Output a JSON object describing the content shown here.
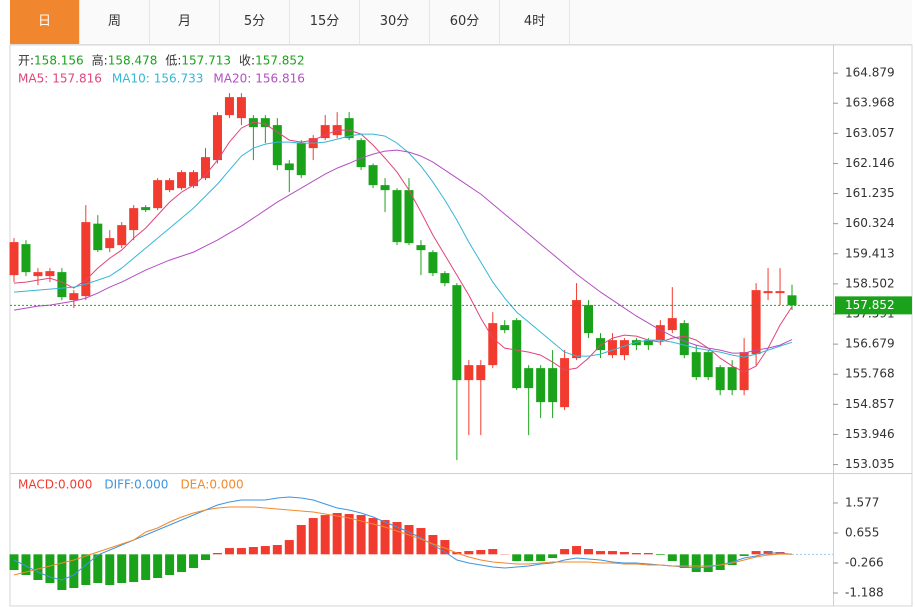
{
  "tabs": [
    "日",
    "周",
    "月",
    "5分",
    "15分",
    "30分",
    "60分",
    "4时"
  ],
  "active_tab": 0,
  "chart_data": [
    {
      "type": "candlestick",
      "legend_labels": {
        "open": "开:",
        "high": "高:",
        "low": "低:",
        "close": "收:"
      },
      "up_color": "#f23b2f",
      "down_color": "#1aa31a",
      "open": [
        158.767,
        159.705,
        158.737,
        158.737,
        158.858,
        158.011,
        158.132,
        160.324,
        159.584,
        159.675,
        160.129,
        160.825,
        160.794,
        161.339,
        161.399,
        161.46,
        161.702,
        162.247,
        163.608,
        163.517,
        163.517,
        163.517,
        163.306,
        162.146,
        162.761,
        162.61,
        162.912,
        163.003,
        163.517,
        162.852,
        162.095,
        161.49,
        161.339,
        161.339,
        159.675,
        159.463,
        158.828,
        158.464,
        155.59,
        155.59,
        156.044,
        157.254,
        157.405,
        155.953,
        155.953,
        155.953,
        154.773,
        156.256,
        157.86,
        156.861,
        156.346,
        156.346,
        156.8,
        156.8,
        156.8,
        157.103,
        157.315,
        156.437,
        156.437,
        155.983,
        155.983,
        155.287,
        156.377,
        158.222,
        158.222,
        158.156
      ],
      "high": [
        159.887,
        159.826,
        158.979,
        158.979,
        158.979,
        158.313,
        160.885,
        160.582,
        160.129,
        160.371,
        160.885,
        160.885,
        161.702,
        161.702,
        161.944,
        161.944,
        162.61,
        163.699,
        164.274,
        164.274,
        163.608,
        163.608,
        163.517,
        162.247,
        162.852,
        163.003,
        163.608,
        163.699,
        163.699,
        162.912,
        162.146,
        161.702,
        161.399,
        161.702,
        159.826,
        159.523,
        158.888,
        158.525,
        156.195,
        156.195,
        157.648,
        157.405,
        157.466,
        156.044,
        156.044,
        156.498,
        156.498,
        158.525,
        158.011,
        157.012,
        157.012,
        156.861,
        156.861,
        156.861,
        157.405,
        158.404,
        157.405,
        156.649,
        156.498,
        156.044,
        156.195,
        156.861,
        158.525,
        158.979,
        158.979,
        158.478
      ],
      "low": [
        158.555,
        158.737,
        158.464,
        158.555,
        158.011,
        157.769,
        158.011,
        159.463,
        159.463,
        159.584,
        159.826,
        160.673,
        160.734,
        161.278,
        161.339,
        161.399,
        161.641,
        162.146,
        163.517,
        163.306,
        162.247,
        162.761,
        161.944,
        161.278,
        161.702,
        162.247,
        162.852,
        162.912,
        162.852,
        161.944,
        161.399,
        160.673,
        159.675,
        159.675,
        158.767,
        158.737,
        158.434,
        153.169,
        153.926,
        153.926,
        155.953,
        157.012,
        155.287,
        153.926,
        154.44,
        154.44,
        154.682,
        156.195,
        156.861,
        156.256,
        156.256,
        156.195,
        156.498,
        156.498,
        156.649,
        157.012,
        156.256,
        155.59,
        155.59,
        155.136,
        155.136,
        155.136,
        156.044,
        158.011,
        157.86,
        157.713
      ],
      "close": [
        159.766,
        158.858,
        158.858,
        158.888,
        158.101,
        158.222,
        160.371,
        159.523,
        159.887,
        160.28,
        160.794,
        160.734,
        161.641,
        161.641,
        161.884,
        161.884,
        162.337,
        163.608,
        164.153,
        164.153,
        163.245,
        163.245,
        162.095,
        161.944,
        161.793,
        162.912,
        163.306,
        163.306,
        162.912,
        162.035,
        161.49,
        161.339,
        159.766,
        159.735,
        159.523,
        158.828,
        158.525,
        155.59,
        156.044,
        156.044,
        157.315,
        157.103,
        155.348,
        155.348,
        154.924,
        154.924,
        156.256,
        158.011,
        157.012,
        156.498,
        156.8,
        156.8,
        156.649,
        156.649,
        157.254,
        157.466,
        156.346,
        155.681,
        155.681,
        155.287,
        155.287,
        156.437,
        158.313,
        158.283,
        158.283,
        157.852
      ],
      "overlays": [
        {
          "name": "MA5:",
          "color": "#e0457b",
          "values": [
            158.525,
            158.555,
            158.616,
            158.676,
            158.555,
            158.374,
            158.616,
            158.979,
            159.281,
            159.523,
            159.887,
            160.189,
            160.583,
            160.976,
            161.278,
            161.49,
            161.793,
            162.247,
            162.791,
            163.215,
            163.396,
            163.336,
            163.094,
            162.852,
            162.791,
            162.852,
            163.003,
            163.154,
            163.154,
            163.033,
            162.7,
            162.307,
            161.884,
            161.339,
            160.673,
            159.977,
            159.372,
            158.767,
            158.162,
            157.466,
            156.861,
            156.558,
            156.498,
            156.437,
            156.346,
            156.135,
            155.893,
            155.953,
            156.256,
            156.649,
            156.861,
            156.952,
            156.922,
            156.8,
            156.74,
            156.861,
            156.922,
            156.8,
            156.558,
            156.256,
            156.014,
            155.832,
            156.014,
            156.558,
            157.254,
            157.816
          ]
        },
        {
          "name": "MA10:",
          "color": "#37b6d6",
          "values": [
            158.253,
            158.283,
            158.313,
            158.343,
            158.374,
            158.404,
            158.495,
            158.616,
            158.737,
            158.979,
            159.281,
            159.584,
            159.887,
            160.189,
            160.492,
            160.794,
            161.157,
            161.52,
            161.944,
            162.368,
            162.61,
            162.731,
            162.791,
            162.791,
            162.761,
            162.761,
            162.791,
            162.882,
            162.973,
            163.033,
            163.033,
            162.973,
            162.761,
            162.458,
            162.065,
            161.581,
            161.036,
            160.431,
            159.766,
            159.16,
            158.555,
            158.071,
            157.648,
            157.345,
            157.042,
            156.74,
            156.437,
            156.316,
            156.316,
            156.377,
            156.498,
            156.619,
            156.74,
            156.8,
            156.8,
            156.74,
            156.649,
            156.558,
            156.498,
            156.437,
            156.346,
            156.286,
            156.377,
            156.498,
            156.619,
            156.733
          ]
        },
        {
          "name": "MA20:",
          "color": "#b44fc3",
          "values": [
            157.708,
            157.769,
            157.829,
            157.86,
            157.92,
            157.98,
            158.071,
            158.222,
            158.404,
            158.555,
            158.737,
            158.918,
            159.069,
            159.221,
            159.342,
            159.463,
            159.645,
            159.826,
            160.038,
            160.25,
            160.492,
            160.734,
            160.976,
            161.188,
            161.399,
            161.611,
            161.823,
            162.005,
            162.146,
            162.307,
            162.428,
            162.519,
            162.549,
            162.489,
            162.368,
            162.186,
            161.944,
            161.702,
            161.46,
            161.218,
            160.915,
            160.613,
            160.31,
            160.008,
            159.705,
            159.402,
            159.1,
            158.797,
            158.525,
            158.253,
            158.011,
            157.769,
            157.527,
            157.315,
            157.103,
            156.921,
            156.77,
            156.649,
            156.558,
            156.498,
            156.407,
            156.407,
            156.498,
            156.558,
            156.649,
            156.816
          ]
        }
      ],
      "ylim": [
        152.81,
        165.73
      ],
      "yticks": [
        153.035,
        153.946,
        154.857,
        155.768,
        156.679,
        157.591,
        158.502,
        159.413,
        160.324,
        161.235,
        162.146,
        163.057,
        163.968,
        164.879
      ]
    },
    {
      "type": "macd",
      "histogram": {
        "name": "MACD:",
        "up_color": "#f23b2f",
        "down_color": "#1aa31a",
        "values": [
          -0.482,
          -0.636,
          -0.789,
          -0.881,
          -1.096,
          -1.035,
          -0.943,
          -0.881,
          -0.943,
          -0.881,
          -0.851,
          -0.789,
          -0.728,
          -0.636,
          -0.544,
          -0.421,
          -0.175,
          0.04,
          0.193,
          0.193,
          0.224,
          0.255,
          0.286,
          0.439,
          0.9,
          1.115,
          1.207,
          1.269,
          1.238,
          1.207,
          1.115,
          1.053,
          0.992,
          0.9,
          0.808,
          0.593,
          0.439,
          0.071,
          0.101,
          0.132,
          0.163,
          0.009,
          -0.206,
          -0.206,
          -0.206,
          -0.114,
          0.163,
          0.255,
          0.163,
          0.101,
          0.101,
          0.071,
          0.04,
          0.04,
          -0.021,
          -0.206,
          -0.421,
          -0.544,
          -0.544,
          -0.482,
          -0.329,
          -0.052,
          0.101,
          0.101,
          0.071,
          0
        ],
        "value_labels": [
          null,
          null,
          null,
          null,
          null,
          null,
          null,
          null,
          null,
          null,
          null,
          null,
          null,
          null,
          null,
          null,
          null,
          null,
          null,
          null,
          null,
          null,
          null,
          null,
          null,
          null,
          null,
          null,
          null,
          null,
          null,
          null,
          null,
          null,
          null,
          null,
          null,
          null,
          null,
          null,
          null,
          null,
          null,
          null,
          null,
          null,
          null,
          null,
          null,
          null,
          null,
          null,
          null,
          null,
          null,
          null,
          null,
          null,
          null,
          null,
          null,
          null,
          null,
          null,
          null,
          "0.000"
        ]
      },
      "series": [
        {
          "name": "DIFF:",
          "color": "#3f95e0",
          "values": [
            -0.175,
            -0.359,
            -0.544,
            -0.697,
            -0.789,
            -0.636,
            -0.329,
            -0.021,
            0.132,
            0.286,
            0.439,
            0.593,
            0.746,
            0.9,
            1.053,
            1.207,
            1.361,
            1.514,
            1.606,
            1.668,
            1.668,
            1.668,
            1.729,
            1.76,
            1.729,
            1.668,
            1.545,
            1.422,
            1.361,
            1.268,
            1.146,
            0.992,
            0.838,
            0.685,
            0.501,
            0.286,
            0.071,
            -0.175,
            -0.267,
            -0.329,
            -0.39,
            -0.421,
            -0.39,
            -0.359,
            -0.298,
            -0.267,
            -0.175,
            -0.114,
            -0.144,
            -0.175,
            -0.236,
            -0.267,
            -0.267,
            -0.298,
            -0.329,
            -0.359,
            -0.39,
            -0.421,
            -0.39,
            -0.329,
            -0.236,
            -0.114,
            -0.052,
            0.04,
            0.04,
            0
          ],
          "value_labels": [
            null,
            null,
            null,
            null,
            null,
            null,
            null,
            null,
            null,
            null,
            null,
            null,
            null,
            null,
            null,
            null,
            null,
            null,
            null,
            null,
            null,
            null,
            null,
            null,
            null,
            null,
            null,
            null,
            null,
            null,
            null,
            null,
            null,
            null,
            null,
            null,
            null,
            null,
            null,
            null,
            null,
            null,
            null,
            null,
            null,
            null,
            null,
            null,
            null,
            null,
            null,
            null,
            null,
            null,
            null,
            null,
            null,
            null,
            null,
            null,
            null,
            null,
            null,
            null,
            null,
            "0.000"
          ]
        },
        {
          "name": "DEA:",
          "color": "#f08a2c",
          "values": [
            -0.636,
            -0.544,
            -0.451,
            -0.359,
            -0.267,
            -0.175,
            -0.052,
            0.071,
            0.193,
            0.316,
            0.439,
            0.685,
            0.808,
            0.992,
            1.146,
            1.268,
            1.361,
            1.422,
            1.453,
            1.453,
            1.453,
            1.422,
            1.391,
            1.361,
            1.33,
            1.299,
            1.238,
            1.176,
            1.115,
            1.023,
            0.931,
            0.838,
            0.716,
            0.593,
            0.47,
            0.316,
            0.193,
            0.04,
            -0.083,
            -0.175,
            -0.236,
            -0.267,
            -0.298,
            -0.298,
            -0.267,
            -0.236,
            -0.236,
            -0.236,
            -0.236,
            -0.267,
            -0.267,
            -0.298,
            -0.298,
            -0.329,
            -0.329,
            -0.359,
            -0.359,
            -0.359,
            -0.359,
            -0.329,
            -0.267,
            -0.175,
            -0.083,
            -0.021,
            0.009,
            0
          ],
          "value_labels": [
            null,
            null,
            null,
            null,
            null,
            null,
            null,
            null,
            null,
            null,
            null,
            null,
            null,
            null,
            null,
            null,
            null,
            null,
            null,
            null,
            null,
            null,
            null,
            null,
            null,
            null,
            null,
            null,
            null,
            null,
            null,
            null,
            null,
            null,
            null,
            null,
            null,
            null,
            null,
            null,
            null,
            null,
            null,
            null,
            null,
            null,
            null,
            null,
            null,
            null,
            null,
            null,
            null,
            null,
            null,
            null,
            null,
            null,
            null,
            null,
            null,
            null,
            null,
            null,
            null,
            "0.000"
          ]
        }
      ],
      "ylim": [
        -1.557,
        2.437
      ],
      "yticks": [
        -1.188,
        -0.266,
        0.655,
        1.577
      ]
    }
  ]
}
